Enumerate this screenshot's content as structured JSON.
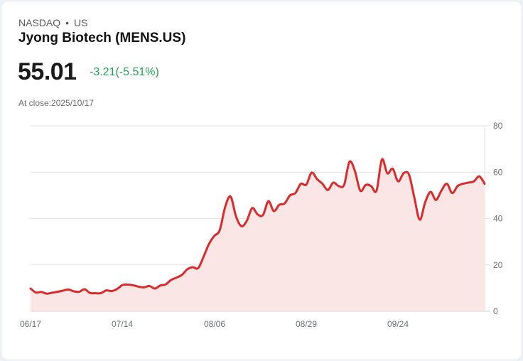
{
  "header": {
    "exchange": "NASDAQ",
    "separator": "•",
    "region": "US",
    "title": "Jyong Biotech (MENS.US)",
    "price": "55.01",
    "change": "-3.21(-5.51%)",
    "at_close_label": "At close:2025/10/17"
  },
  "colors": {
    "line": "#d92b2b",
    "fill": "#fbe6e6",
    "change_text": "#1fa252",
    "grid": "#e2e2e2"
  },
  "chart_data": {
    "type": "area",
    "title": "Jyong Biotech (MENS.US)",
    "xlabel": "",
    "ylabel": "",
    "ylim": [
      0,
      80
    ],
    "yticks": [
      0,
      20,
      40,
      60,
      80
    ],
    "xtick_labels": [
      "06/17",
      "07/14",
      "08/06",
      "08/29",
      "09/24"
    ],
    "grid": true,
    "y_axis_position": "right",
    "series": [
      {
        "name": "MENS.US",
        "x_start": "06/17",
        "x_end": "10/17",
        "values": [
          9.8,
          8.1,
          8.3,
          7.6,
          8.0,
          8.4,
          8.9,
          9.4,
          8.6,
          8.4,
          9.5,
          7.9,
          7.8,
          7.8,
          9.0,
          8.7,
          9.6,
          11.3,
          11.5,
          11.2,
          10.6,
          10.3,
          10.9,
          9.8,
          11.1,
          11.6,
          13.5,
          14.5,
          15.7,
          18.1,
          19.0,
          18.6,
          23.5,
          29.0,
          32.5,
          35.0,
          45.0,
          49.5,
          41.0,
          36.7,
          39.0,
          44.5,
          41.8,
          41.5,
          47.5,
          43.2,
          45.9,
          46.5,
          50.0,
          51.0,
          55.0,
          54.6,
          59.8,
          57.0,
          55.0,
          52.3,
          55.5,
          54.0,
          54.5,
          64.5,
          60.5,
          52.0,
          54.5,
          54.0,
          52.0,
          65.5,
          59.5,
          61.5,
          56.0,
          59.5,
          59.0,
          49.0,
          39.5,
          47.0,
          51.5,
          48.0,
          52.0,
          55.0,
          51.0,
          54.0,
          55.0,
          55.5,
          56.0,
          58.2,
          55.0
        ]
      }
    ]
  }
}
